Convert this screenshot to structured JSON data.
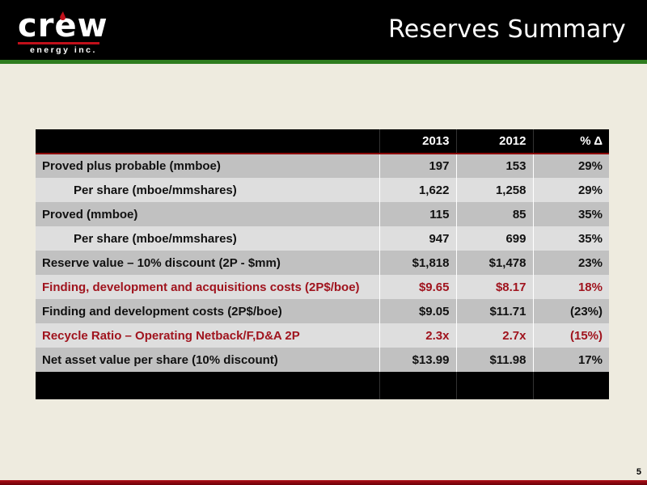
{
  "header": {
    "logo_word": "crew",
    "logo_sub": "energy inc.",
    "title": "Reserves Summary"
  },
  "colors": {
    "header_bg": "#000000",
    "accent_green": "#2e7d1f",
    "brand_red": "#c0101a",
    "row_dark": "#c1c1c1",
    "row_light": "#dedede",
    "highlight_text": "#a0141e",
    "page_bg": "#eeebdf"
  },
  "table": {
    "columns": [
      "",
      "2013",
      "2012",
      "% Δ"
    ],
    "rows": [
      {
        "label": "Proved plus probable (mmboe)",
        "v2013": "197",
        "v2012": "153",
        "pct": "29%",
        "indent": false,
        "highlight": false
      },
      {
        "label": "Per share (mboe/mmshares)",
        "v2013": "1,622",
        "v2012": "1,258",
        "pct": "29%",
        "indent": true,
        "highlight": false
      },
      {
        "label": "Proved (mmboe)",
        "v2013": "115",
        "v2012": "85",
        "pct": "35%",
        "indent": false,
        "highlight": false
      },
      {
        "label": "Per share (mboe/mmshares)",
        "v2013": "947",
        "v2012": "699",
        "pct": "35%",
        "indent": true,
        "highlight": false
      },
      {
        "label": "Reserve value – 10% discount (2P - $mm)",
        "v2013": "$1,818",
        "v2012": "$1,478",
        "pct": "23%",
        "indent": false,
        "highlight": false
      },
      {
        "label": "Finding, development and acquisitions costs (2P$/boe)",
        "v2013": "$9.65",
        "v2012": "$8.17",
        "pct": "18%",
        "indent": false,
        "highlight": true
      },
      {
        "label": "Finding and development costs (2P$/boe)",
        "v2013": "$9.05",
        "v2012": "$11.71",
        "pct": "(23%)",
        "indent": false,
        "highlight": false
      },
      {
        "label": "Recycle Ratio – Operating Netback/F,D&A 2P",
        "v2013": "2.3x",
        "v2012": "2.7x",
        "pct": "(15%)",
        "indent": false,
        "highlight": true
      },
      {
        "label": "Net asset value per share (10% discount)",
        "v2013": "$13.99",
        "v2012": "$11.98",
        "pct": "17%",
        "indent": false,
        "highlight": false
      }
    ]
  },
  "footer": {
    "page_number": "5"
  }
}
